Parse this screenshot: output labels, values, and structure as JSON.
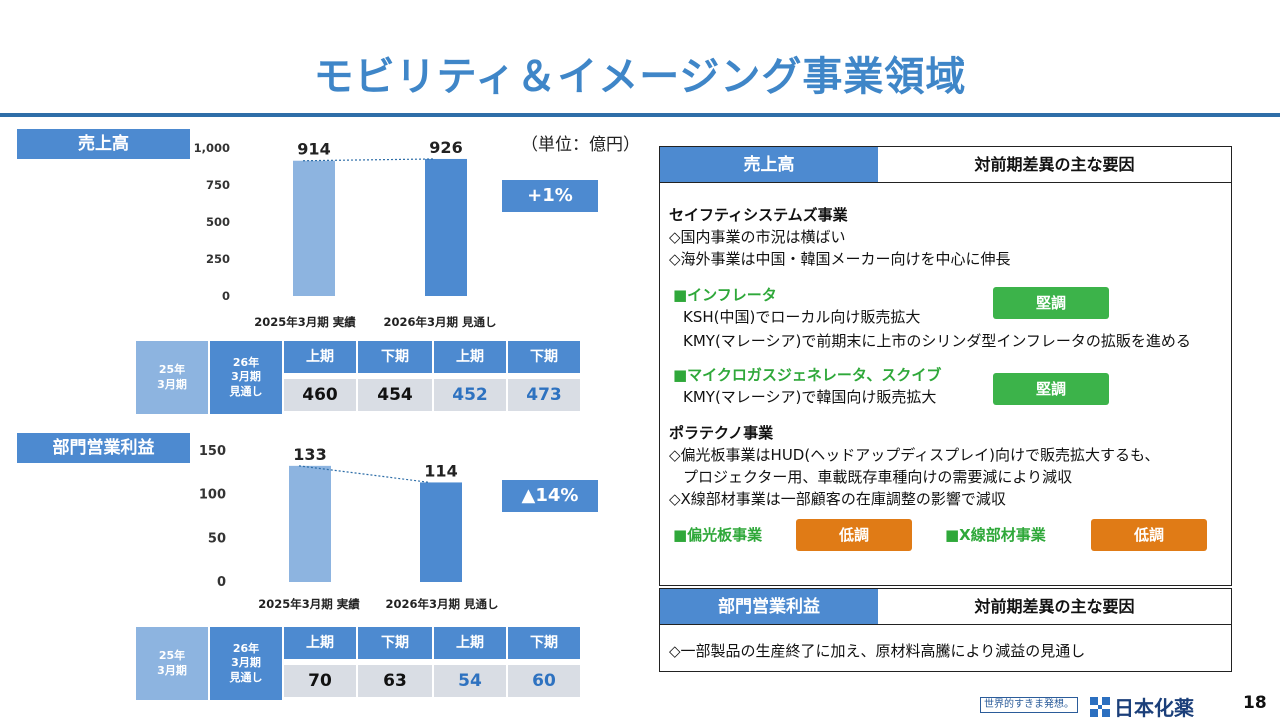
{
  "title": "モビリティ＆イメージング事業領域",
  "unit": "（単位：億円）",
  "sales_chart": {
    "label": "売上高",
    "change": "+1%",
    "chart_data": {
      "type": "bar",
      "categories": [
        "2025年3月期 実績",
        "2026年3月期 見通し"
      ],
      "values": [
        914,
        926
      ],
      "value_labels": [
        "914",
        "926"
      ],
      "ylim": [
        0,
        1000
      ],
      "yticks": [
        0,
        250,
        500,
        750,
        1000
      ],
      "ytick_labels": [
        "0",
        "250",
        "500",
        "750",
        "1,000"
      ],
      "colors": [
        "#8db4e0",
        "#4d8ad0"
      ]
    },
    "table": {
      "y1_label_l1": "25年",
      "y1_label_l2": "3月期",
      "y2_label_l1": "26年",
      "y2_label_l2": "3月期",
      "y2_label_l3": "見通し",
      "h1": "上期",
      "h2": "下期",
      "y1_h1": "460",
      "y1_h2": "454",
      "y2_h1": "452",
      "y2_h2": "473"
    }
  },
  "profit_chart": {
    "label": "部門営業利益",
    "change": "▲14%",
    "chart_data": {
      "type": "bar",
      "categories": [
        "2025年3月期 実績",
        "2026年3月期 見通し"
      ],
      "values": [
        133,
        114
      ],
      "value_labels": [
        "133",
        "114"
      ],
      "ylim": [
        0,
        150
      ],
      "yticks": [
        0,
        50,
        100,
        150
      ],
      "ytick_labels": [
        "0",
        "50",
        "100",
        "150"
      ],
      "colors": [
        "#8db4e0",
        "#4d8ad0"
      ]
    },
    "table": {
      "y1_label_l1": "25年",
      "y1_label_l2": "3月期",
      "y2_label_l1": "26年",
      "y2_label_l2": "3月期",
      "y2_label_l3": "見通し",
      "h1": "上期",
      "h2": "下期",
      "y1_h1": "70",
      "y1_h2": "63",
      "y2_h1": "54",
      "y2_h2": "60"
    }
  },
  "sales_panel": {
    "head_left": "売上高",
    "head_right": "対前期差異の主な要因",
    "safety_title": "セイフティシステムズ事業",
    "safety_l1": "◇国内事業の市況は横ばい",
    "safety_l2": "◇海外事業は中国・韓国メーカー向けを中心に伸長",
    "inflator_title": "■インフレータ",
    "inflator_badge": "堅調",
    "inflator_l1": "KSH(中国)でローカル向け販売拡大",
    "inflator_l2": "KMY(マレーシア)で前期末に上市のシリンダ型インフレータの拡販を進める",
    "micro_title": "■マイクロガスジェネレータ、スクイブ",
    "micro_badge": "堅調",
    "micro_l1": "KMY(マレーシア)で韓国向け販売拡大",
    "polatechno_title": "ポラテクノ事業",
    "polatechno_l1": "◇偏光板事業はHUD(ヘッドアップディスプレイ)向けで販売拡大するも、",
    "polatechno_l2": "プロジェクター用、車載既存車種向けの需要減により減収",
    "polatechno_l3": "◇X線部材事業は一部顧客の在庫調整の影響で減収",
    "polarizer_title": "■偏光板事業",
    "polarizer_badge": "低調",
    "xray_title": "■X線部材事業",
    "xray_badge": "低調"
  },
  "profit_panel": {
    "head_left": "部門営業利益",
    "head_right": "対前期差異の主な要因",
    "l1": "◇一部製品の生産終了に加え、原材料高騰により減益の見通し"
  },
  "footer": {
    "tagline": "世界的すきま発想。",
    "logo": "日本化薬",
    "page": "18"
  }
}
